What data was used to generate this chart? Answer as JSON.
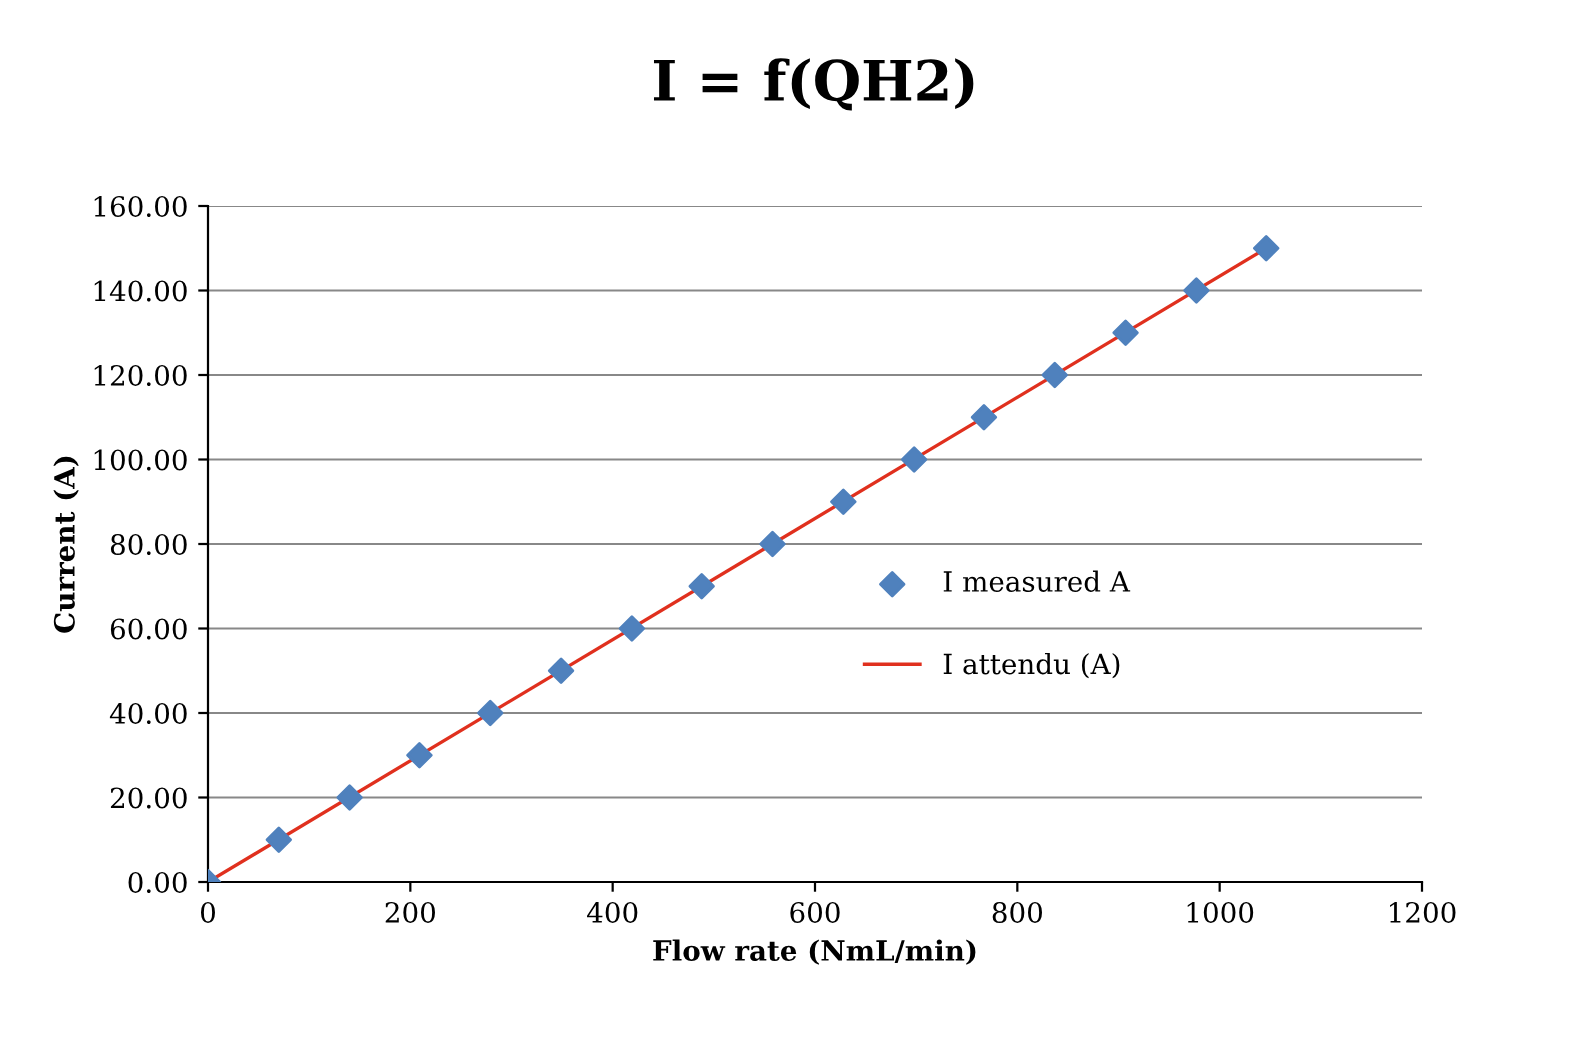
{
  "chart_data": {
    "type": "scatter",
    "title": "I = f(QH2)",
    "xlabel": "Flow rate (NmL/min)",
    "ylabel": "Current (A)",
    "xlim": [
      0,
      1200
    ],
    "xticks": [
      0,
      200,
      400,
      600,
      800,
      1000,
      1200
    ],
    "ylim": [
      0,
      160
    ],
    "yticks": [
      {
        "value": 0,
        "label": "0.00"
      },
      {
        "value": 20,
        "label": "20.00"
      },
      {
        "value": 40,
        "label": "40.00"
      },
      {
        "value": 60,
        "label": "60.00"
      },
      {
        "value": 80,
        "label": "80.00"
      },
      {
        "value": 100,
        "label": "100.00"
      },
      {
        "value": 120,
        "label": "120.00"
      },
      {
        "value": 140,
        "label": "140.00"
      },
      {
        "value": 160,
        "label": "160.00"
      }
    ],
    "grid": "y",
    "legend": "right",
    "series": [
      {
        "name": "I measured A",
        "color": "#4f81bd",
        "marker": "diamond",
        "x": [
          0,
          70,
          140,
          209,
          279,
          349,
          419,
          488,
          558,
          628,
          698,
          767,
          837,
          907,
          977,
          1046
        ],
        "values": [
          0,
          10,
          20,
          30,
          40,
          50,
          60,
          70,
          80,
          90,
          100,
          110,
          120,
          130,
          140,
          150
        ]
      },
      {
        "name": "I attendu (A)",
        "type": "line",
        "color": "#e0301e",
        "marker": "none",
        "line_style": "solid",
        "x": [
          0,
          1046
        ],
        "values": [
          0,
          150
        ]
      }
    ]
  }
}
